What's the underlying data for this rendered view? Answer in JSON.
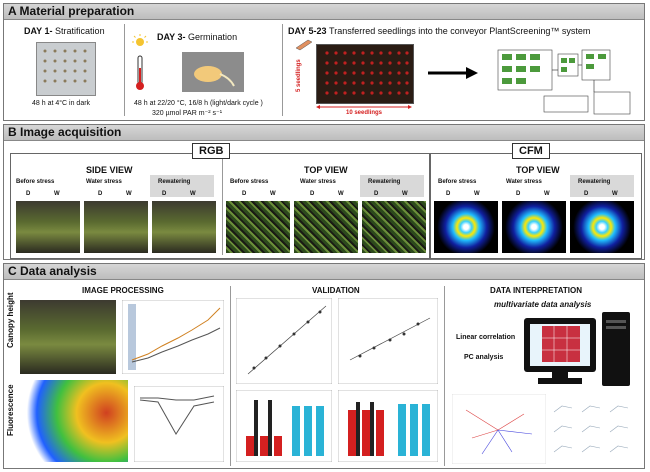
{
  "panelA": {
    "title": "A  Material preparation",
    "day1": {
      "title": "DAY 1-",
      "subtitle": "Stratification",
      "caption": "48 h at 4°C in dark"
    },
    "day3": {
      "title": "DAY 3-",
      "subtitle": "Germination",
      "caption1": "48 h at 22/20 °C, 16/8 h (light/dark cycle )",
      "caption2": "320 µmol PAR m⁻² s⁻¹"
    },
    "day5": {
      "title": "DAY 5-23",
      "subtitle": "Transferred seedlings into the conveyor PlantScreening™ system",
      "rows": "5 seedlings",
      "cols": "10 seedlings"
    }
  },
  "panelB": {
    "title": "B  Image acquisition",
    "rgb": "RGB",
    "cfm": "CFM",
    "side_view": "SIDE VIEW",
    "top_view": "TOP VIEW",
    "top_view2": "TOP VIEW",
    "stages": [
      "Before stress",
      "Water stress",
      "Rewatering"
    ],
    "d": "D",
    "w": "W"
  },
  "panelC": {
    "title": "C  Data analysis",
    "image_processing": "IMAGE PROCESSING",
    "validation": "VALIDATION",
    "data_interpretation": "DATA INTERPRETATION",
    "multivariate": "multivariate data analysis",
    "canopy_height": "Canopy height",
    "fluorescence": "Fluorescence",
    "linear_correlation": "Linear correlation",
    "pc_analysis": "PC analysis"
  },
  "colors": {
    "header_bg": "#c8c8c8",
    "red_bar": "#d42020",
    "cyan_bar": "#2ab3d6",
    "arrow": "#e02020"
  }
}
